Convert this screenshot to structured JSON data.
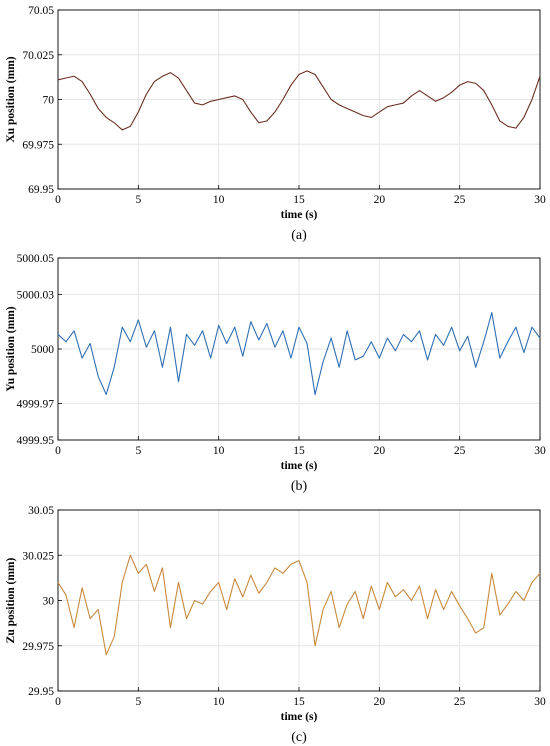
{
  "chart_data": [
    {
      "type": "line",
      "panel_caption": "(a)",
      "xlabel": "time (s)",
      "ylabel": "Xu position (mm)",
      "xlim": [
        0,
        30
      ],
      "ylim": [
        69.95,
        70.05
      ],
      "xticks": [
        0,
        5,
        10,
        15,
        20,
        25,
        30
      ],
      "xtick_labels": [
        "0",
        "5",
        "10",
        "15",
        "20",
        "25",
        "30"
      ],
      "yticks": [
        69.95,
        69.975,
        70,
        70.025,
        70.05
      ],
      "ytick_labels": [
        "69.95",
        "69.975",
        "70",
        "70.025",
        "70.05"
      ],
      "grid": true,
      "color": "#6b2f22",
      "series": [
        {
          "x": [
            0,
            0.5,
            1,
            1.5,
            2,
            2.5,
            3,
            3.5,
            4,
            4.5,
            5,
            5.5,
            6,
            6.5,
            7,
            7.5,
            8,
            8.5,
            9,
            9.5,
            10,
            10.5,
            11,
            11.5,
            12,
            12.5,
            13,
            13.5,
            14,
            14.5,
            15,
            15.5,
            16,
            16.5,
            17,
            17.5,
            18,
            18.5,
            19,
            19.5,
            20,
            20.5,
            21,
            21.5,
            22,
            22.5,
            23,
            23.5,
            24,
            24.5,
            25,
            25.5,
            26,
            26.5,
            27,
            27.5,
            28,
            28.5,
            29,
            29.5,
            30
          ],
          "y": [
            70.011,
            70.012,
            70.013,
            70.01,
            70.003,
            69.995,
            69.99,
            69.987,
            69.983,
            69.985,
            69.993,
            70.003,
            70.01,
            70.013,
            70.015,
            70.012,
            70.005,
            69.998,
            69.997,
            69.999,
            70.0,
            70.001,
            70.002,
            70.0,
            69.993,
            69.987,
            69.988,
            69.993,
            70.0,
            70.008,
            70.014,
            70.016,
            70.014,
            70.007,
            70.0,
            69.997,
            69.995,
            69.993,
            69.991,
            69.99,
            69.993,
            69.996,
            69.997,
            69.998,
            70.002,
            70.005,
            70.002,
            69.999,
            70.001,
            70.004,
            70.008,
            70.01,
            70.009,
            70.005,
            69.997,
            69.988,
            69.985,
            69.984,
            69.99,
            70.0,
            70.013
          ]
        }
      ]
    },
    {
      "type": "line",
      "panel_caption": "(b)",
      "xlabel": "time (s)",
      "ylabel": "Yu position (mm)",
      "xlim": [
        0,
        30
      ],
      "ylim": [
        4999.95,
        5000.05
      ],
      "xticks": [
        0,
        5,
        10,
        15,
        20,
        25,
        30
      ],
      "xtick_labels": [
        "0",
        "5",
        "10",
        "15",
        "20",
        "25",
        "30"
      ],
      "yticks": [
        4999.95,
        4999.97,
        5000,
        5000.03,
        5000.05
      ],
      "ytick_labels": [
        "4999.95",
        "4999.97",
        "5000",
        "5000.03",
        "5000.05"
      ],
      "grid": true,
      "color": "#2f6fb3",
      "series": [
        {
          "x": [
            0,
            0.5,
            1,
            1.5,
            2,
            2.5,
            3,
            3.5,
            4,
            4.5,
            5,
            5.5,
            6,
            6.5,
            7,
            7.5,
            8,
            8.5,
            9,
            9.5,
            10,
            10.5,
            11,
            11.5,
            12,
            12.5,
            13,
            13.5,
            14,
            14.5,
            15,
            15.5,
            16,
            16.5,
            17,
            17.5,
            18,
            18.5,
            19,
            19.5,
            20,
            20.5,
            21,
            21.5,
            22,
            22.5,
            23,
            23.5,
            24,
            24.5,
            25,
            25.5,
            26,
            26.5,
            27,
            27.5,
            28,
            28.5,
            29,
            29.5,
            30
          ],
          "y": [
            5000.008,
            5000.004,
            5000.01,
            4999.995,
            5000.003,
            4999.985,
            4999.975,
            4999.99,
            5000.012,
            5000.004,
            5000.016,
            5000.001,
            5000.01,
            4999.99,
            5000.012,
            4999.982,
            5000.008,
            5000.002,
            5000.01,
            4999.995,
            5000.013,
            5000.003,
            5000.012,
            4999.996,
            5000.015,
            5000.005,
            5000.014,
            5000.001,
            5000.01,
            4999.995,
            5000.012,
            5000.003,
            4999.975,
            4999.993,
            5000.006,
            4999.99,
            5000.01,
            4999.994,
            4999.996,
            5000.004,
            4999.995,
            5000.006,
            4999.999,
            5000.008,
            5000.004,
            5000.01,
            4999.994,
            5000.008,
            5000.002,
            5000.012,
            4999.999,
            5000.007,
            4999.99,
            5000.004,
            5000.02,
            4999.995,
            5000.004,
            5000.012,
            4999.998,
            5000.012,
            5000.006
          ]
        }
      ]
    },
    {
      "type": "line",
      "panel_caption": "(c)",
      "xlabel": "time (s)",
      "ylabel": "Zu position (mm)",
      "xlim": [
        0,
        30
      ],
      "ylim": [
        29.95,
        30.05
      ],
      "xticks": [
        0,
        5,
        10,
        15,
        20,
        25,
        30
      ],
      "xtick_labels": [
        "0",
        "5",
        "10",
        "15",
        "20",
        "25",
        "30"
      ],
      "yticks": [
        29.95,
        29.975,
        30,
        30.025,
        30.05
      ],
      "ytick_labels": [
        "29.95",
        "29.975",
        "30",
        "30.025",
        "30.05"
      ],
      "grid": true,
      "color": "#c8893c",
      "series": [
        {
          "x": [
            0,
            0.5,
            1,
            1.5,
            2,
            2.5,
            3,
            3.5,
            4,
            4.5,
            5,
            5.5,
            6,
            6.5,
            7,
            7.5,
            8,
            8.5,
            9,
            9.5,
            10,
            10.5,
            11,
            11.5,
            12,
            12.5,
            13,
            13.5,
            14,
            14.5,
            15,
            15.5,
            16,
            16.5,
            17,
            17.5,
            18,
            18.5,
            19,
            19.5,
            20,
            20.5,
            21,
            21.5,
            22,
            22.5,
            23,
            23.5,
            24,
            24.5,
            25,
            25.5,
            26,
            26.5,
            27,
            27.5,
            28,
            28.5,
            29,
            29.5,
            30
          ],
          "y": [
            30.01,
            30.003,
            29.985,
            30.007,
            29.99,
            29.995,
            29.97,
            29.98,
            30.01,
            30.025,
            30.015,
            30.02,
            30.005,
            30.018,
            29.985,
            30.01,
            29.99,
            30.0,
            29.998,
            30.005,
            30.01,
            29.995,
            30.012,
            30.002,
            30.014,
            30.004,
            30.01,
            30.018,
            30.015,
            30.02,
            30.022,
            30.01,
            29.975,
            29.995,
            30.005,
            29.985,
            29.998,
            30.005,
            29.99,
            30.008,
            29.995,
            30.01,
            30.002,
            30.006,
            30.0,
            30.008,
            29.99,
            30.006,
            29.995,
            30.005,
            29.997,
            29.99,
            29.982,
            29.985,
            30.015,
            29.992,
            29.998,
            30.005,
            30.0,
            30.01,
            30.015
          ]
        }
      ]
    }
  ]
}
